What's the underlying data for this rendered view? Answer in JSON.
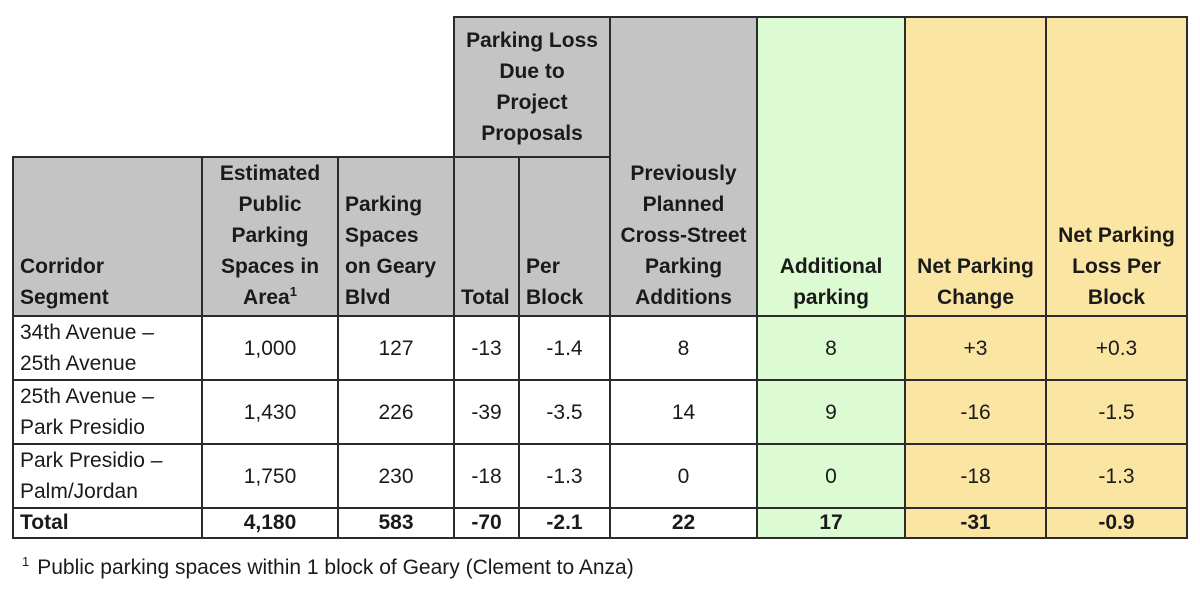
{
  "table": {
    "group_header": "Parking Loss Due to Project Proposals",
    "headers": {
      "corridor": "Corridor Segment",
      "estimated": "Estimated Public Parking Spaces in Area",
      "estimated_sup": "1",
      "geary": "Parking Spaces on Geary Blvd",
      "total": "Total",
      "per_block": "Per Block",
      "previously": "Previously Planned Cross-Street Parking Additions",
      "additional": "Additional parking",
      "net_change": "Net Parking Change",
      "net_loss_per_block": "Net Parking Loss Per Block"
    },
    "rows": [
      {
        "segment": "34th Avenue – 25th Avenue",
        "estimated": "1,000",
        "geary": "127",
        "total": "-13",
        "per_block": "-1.4",
        "previously": "8",
        "additional": "8",
        "net_change": "+3",
        "net_loss_per_block": "+0.3"
      },
      {
        "segment": "25th Avenue – Park Presidio",
        "estimated": "1,430",
        "geary": "226",
        "total": "-39",
        "per_block": "-3.5",
        "previously": "14",
        "additional": "9",
        "net_change": "-16",
        "net_loss_per_block": "-1.5"
      },
      {
        "segment": "Park Presidio – Palm/Jordan",
        "estimated": "1,750",
        "geary": "230",
        "total": "-18",
        "per_block": "-1.3",
        "previously": "0",
        "additional": "0",
        "net_change": "-18",
        "net_loss_per_block": "-1.3"
      }
    ],
    "total_row": {
      "label": "Total",
      "estimated": "4,180",
      "geary": "583",
      "total": "-70",
      "per_block": "-2.1",
      "previously": "22",
      "additional": "17",
      "net_change": "-31",
      "net_loss_per_block": "-0.9"
    },
    "colors": {
      "header_gray": "#c4c4c4",
      "additional_green": "#ddfbd3",
      "net_yellow": "#fbe5a2"
    }
  },
  "footnote": {
    "marker": "1",
    "text": "Public parking spaces within 1 block of Geary (Clement to Anza)"
  }
}
